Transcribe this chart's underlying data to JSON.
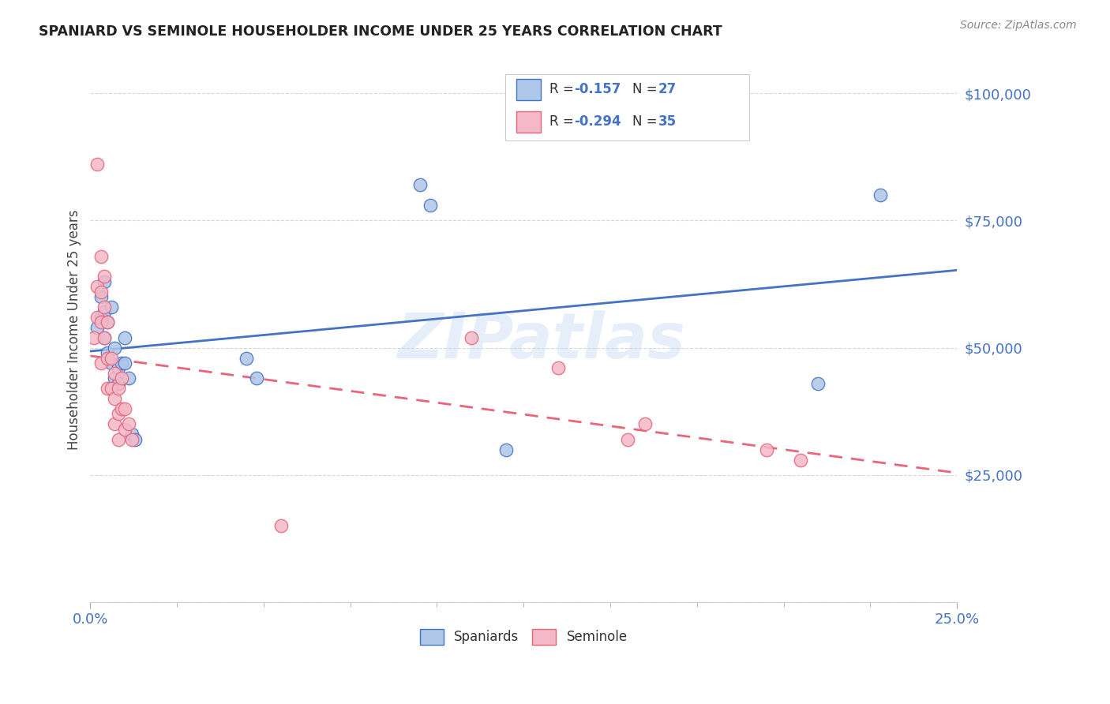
{
  "title": "SPANIARD VS SEMINOLE HOUSEHOLDER INCOME UNDER 25 YEARS CORRELATION CHART",
  "source": "Source: ZipAtlas.com",
  "ylabel": "Householder Income Under 25 years",
  "y_ticks": [
    0,
    25000,
    50000,
    75000,
    100000
  ],
  "y_tick_labels": [
    "",
    "$25,000",
    "$50,000",
    "$75,000",
    "$100,000"
  ],
  "x_min": 0.0,
  "x_max": 0.25,
  "y_min": 0,
  "y_max": 107000,
  "spaniard_color": "#aec6e8",
  "seminole_color": "#f4b8c8",
  "spaniard_line_color": "#4472c4",
  "seminole_line_color": "#e8657a",
  "watermark_text": "ZIPatlas",
  "background_color": "#ffffff",
  "grid_color": "#d8d8d8",
  "spaniard_x": [
    0.002,
    0.003,
    0.003,
    0.004,
    0.004,
    0.004,
    0.005,
    0.005,
    0.006,
    0.006,
    0.007,
    0.007,
    0.008,
    0.008,
    0.009,
    0.01,
    0.01,
    0.011,
    0.012,
    0.013,
    0.045,
    0.048,
    0.095,
    0.098,
    0.12,
    0.21,
    0.228
  ],
  "spaniard_y": [
    54000,
    60000,
    56000,
    63000,
    57000,
    52000,
    55000,
    49000,
    58000,
    47000,
    50000,
    44000,
    46000,
    43000,
    47000,
    52000,
    47000,
    44000,
    33000,
    32000,
    48000,
    44000,
    82000,
    78000,
    30000,
    43000,
    80000
  ],
  "seminole_x": [
    0.001,
    0.002,
    0.002,
    0.002,
    0.003,
    0.003,
    0.003,
    0.003,
    0.004,
    0.004,
    0.004,
    0.005,
    0.005,
    0.005,
    0.006,
    0.006,
    0.007,
    0.007,
    0.007,
    0.008,
    0.008,
    0.008,
    0.009,
    0.009,
    0.01,
    0.01,
    0.011,
    0.012,
    0.055,
    0.11,
    0.135,
    0.155,
    0.16,
    0.195,
    0.205
  ],
  "seminole_y": [
    52000,
    62000,
    86000,
    56000,
    68000,
    61000,
    55000,
    47000,
    64000,
    58000,
    52000,
    55000,
    48000,
    42000,
    48000,
    42000,
    45000,
    40000,
    35000,
    42000,
    37000,
    32000,
    44000,
    38000,
    38000,
    34000,
    35000,
    32000,
    15000,
    52000,
    46000,
    32000,
    35000,
    30000,
    28000
  ]
}
